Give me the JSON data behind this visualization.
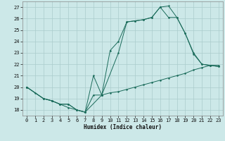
{
  "title": "",
  "xlabel": "Humidex (Indice chaleur)",
  "bg_color": "#cce8e8",
  "grid_color": "#aacccc",
  "line_color": "#1a6b5a",
  "xlim": [
    -0.5,
    23.5
  ],
  "ylim": [
    17.5,
    27.5
  ],
  "xticks": [
    0,
    1,
    2,
    3,
    4,
    5,
    6,
    7,
    8,
    9,
    10,
    11,
    12,
    13,
    14,
    15,
    16,
    17,
    18,
    19,
    20,
    21,
    22,
    23
  ],
  "yticks": [
    18,
    19,
    20,
    21,
    22,
    23,
    24,
    25,
    26,
    27
  ],
  "line1_x": [
    0,
    1,
    2,
    3,
    4,
    5,
    6,
    7,
    8,
    9,
    10,
    11,
    12,
    13,
    14,
    15,
    16,
    17,
    18,
    19,
    20,
    21,
    22,
    23
  ],
  "line1_y": [
    20.0,
    19.5,
    19.0,
    18.8,
    18.5,
    18.2,
    18.0,
    17.8,
    19.3,
    19.3,
    19.5,
    19.6,
    19.8,
    20.0,
    20.2,
    20.4,
    20.6,
    20.8,
    21.0,
    21.2,
    21.5,
    21.7,
    21.9,
    21.9
  ],
  "line2_x": [
    0,
    2,
    3,
    4,
    5,
    6,
    7,
    8,
    9,
    10,
    11,
    12,
    13,
    14,
    15,
    16,
    17,
    18,
    19,
    20,
    21,
    22,
    23
  ],
  "line2_y": [
    20.0,
    19.0,
    18.8,
    18.5,
    18.5,
    18.0,
    17.8,
    21.0,
    19.3,
    23.2,
    24.0,
    25.7,
    25.8,
    25.9,
    26.1,
    27.0,
    27.1,
    26.1,
    24.7,
    22.9,
    22.0,
    21.9,
    21.8
  ],
  "line3_x": [
    0,
    2,
    3,
    4,
    5,
    6,
    7,
    9,
    11,
    12,
    13,
    14,
    15,
    16,
    17,
    18,
    19,
    20,
    21,
    22,
    23
  ],
  "line3_y": [
    20.0,
    19.0,
    18.8,
    18.5,
    18.5,
    18.0,
    17.8,
    19.3,
    23.0,
    25.7,
    25.8,
    25.9,
    26.1,
    27.0,
    26.1,
    26.1,
    24.7,
    23.0,
    22.0,
    21.9,
    21.8
  ]
}
